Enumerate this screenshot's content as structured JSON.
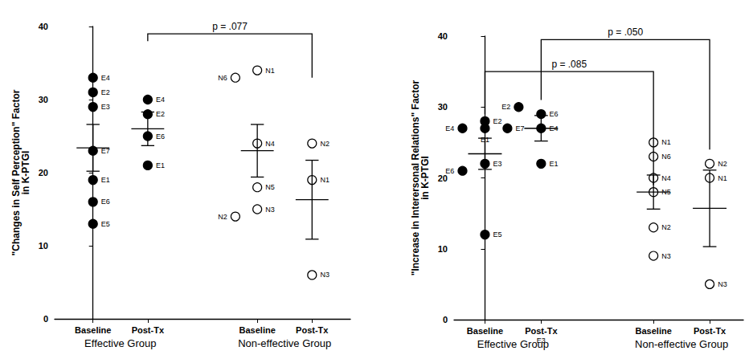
{
  "chart_data": [
    {
      "type": "scatter",
      "y_label": "\"Changes in Self Perception\" Factor\nin K-PTGI",
      "ylim": [
        0,
        40
      ],
      "yticks": [
        0,
        10,
        20,
        30,
        40
      ],
      "grid": false,
      "marker": "circle",
      "groups": [
        {
          "name": "Effective Group",
          "color": "#000000",
          "categories": [
            "Baseline",
            "Post-Tx"
          ],
          "points": [
            [
              {
                "label": "E4",
                "value": 33
              },
              {
                "label": "E2",
                "value": 31
              },
              {
                "label": "E3",
                "value": 29
              },
              {
                "label": "E7",
                "value": 23
              },
              {
                "label": "E1",
                "value": 19
              },
              {
                "label": "E6",
                "value": 16
              },
              {
                "label": "E5",
                "value": 13
              }
            ],
            [
              {
                "label": "E4",
                "value": 30
              },
              {
                "label": "E2",
                "value": 28
              },
              {
                "label": "E6",
                "value": 25
              },
              {
                "label": "E1",
                "value": 21
              }
            ]
          ],
          "mean": [
            23.4,
            26
          ],
          "error": [
            3.2,
            2.3
          ]
        },
        {
          "name": "Non-effective Group",
          "color": "#ffffff",
          "categories": [
            "Baseline",
            "Post-Tx"
          ],
          "points": [
            [
              {
                "label": "N1",
                "value": 34
              },
              {
                "label": "N6",
                "value": 33
              },
              {
                "label": "N4",
                "value": 24
              },
              {
                "label": "N5",
                "value": 18
              },
              {
                "label": "N3",
                "value": 15
              },
              {
                "label": "N2",
                "value": 14
              }
            ],
            [
              {
                "label": "N2",
                "value": 24
              },
              {
                "label": "N1",
                "value": 19
              },
              {
                "label": "N3",
                "value": 6
              }
            ]
          ],
          "mean": [
            23,
            16.3
          ],
          "error": [
            3.6,
            5.4
          ]
        }
      ],
      "brackets": [
        {
          "from": 1,
          "to": 3,
          "y": 39,
          "ends": [
            38,
            33
          ],
          "label": "p = .077"
        }
      ],
      "annotations": []
    },
    {
      "type": "scatter",
      "y_label": "\"Increase in Interersonal Relations\" Factor\nin K-PTGI",
      "ylim": [
        0,
        40
      ],
      "yticks": [
        0,
        10,
        20,
        30,
        40
      ],
      "grid": false,
      "marker": "circle",
      "groups": [
        {
          "name": "Effective Group",
          "color": "#000000",
          "categories": [
            "Baseline",
            "Post-Tx"
          ],
          "points": [
            [
              {
                "label": "E2",
                "value": 28
              },
              {
                "label": "E4",
                "value": 27
              },
              {
                "label": "E7",
                "value": 27
              },
              {
                "label": "E1",
                "value": 27
              },
              {
                "label": "E3",
                "value": 22
              },
              {
                "label": "E6",
                "value": 21
              },
              {
                "label": "E5",
                "value": 12
              }
            ],
            [
              {
                "label": "E6",
                "value": 29
              },
              {
                "label": "E2",
                "value": 30
              },
              {
                "label": "E4",
                "value": 27
              },
              {
                "label": "E1",
                "value": 22
              }
            ]
          ],
          "mean": [
            23.4,
            27
          ],
          "error": [
            2.2,
            1.8
          ]
        },
        {
          "name": "Non-effective Group",
          "color": "#ffffff",
          "categories": [
            "Baseline",
            "Post-Tx"
          ],
          "points": [
            [
              {
                "label": "N1",
                "value": 25
              },
              {
                "label": "N6",
                "value": 23
              },
              {
                "label": "N4",
                "value": 20
              },
              {
                "label": "N5",
                "value": 18
              },
              {
                "label": "N2",
                "value": 13
              },
              {
                "label": "N3",
                "value": 9
              }
            ],
            [
              {
                "label": "N2",
                "value": 22
              },
              {
                "label": "N1",
                "value": 20
              },
              {
                "label": "N3",
                "value": 5
              }
            ]
          ],
          "mean": [
            18,
            15.7
          ],
          "error": [
            2.4,
            5.4
          ]
        }
      ],
      "brackets": [
        {
          "from": 0,
          "to": 2,
          "y": 35,
          "ends": [
            29,
            19
          ],
          "label": "p = .085"
        },
        {
          "from": 1,
          "to": 3,
          "y": 39.5,
          "ends": [
            31,
            24
          ],
          "label": "p = .050"
        }
      ],
      "annotations": [
        {
          "text": "E3",
          "x": 1,
          "y": -3
        }
      ]
    }
  ]
}
